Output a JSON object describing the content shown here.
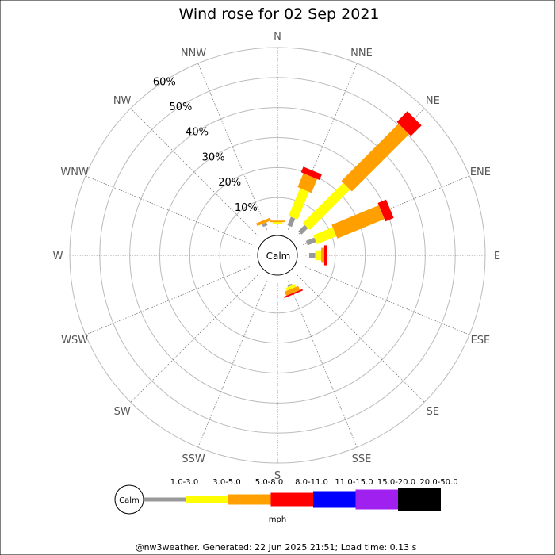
{
  "chart_data": {
    "type": "wind-rose",
    "title": "Wind rose for 02 Sep 2021",
    "calm_label": "Calm",
    "directions": [
      "N",
      "NNE",
      "NE",
      "ENE",
      "E",
      "ESE",
      "SE",
      "SSE",
      "S",
      "SSW",
      "SW",
      "WSW",
      "W",
      "WNW",
      "NW",
      "NNW"
    ],
    "radial_ticks": [
      "10%",
      "20%",
      "30%",
      "40%",
      "50%",
      "60%"
    ],
    "radial_values": [
      10,
      20,
      30,
      40,
      50,
      60
    ],
    "speed_bins": [
      {
        "label": "1.0-3.0",
        "color": "#999999"
      },
      {
        "label": "3.0-5.0",
        "color": "#ffff00"
      },
      {
        "label": "5.0-8.0",
        "color": "#ffa000"
      },
      {
        "label": "8.0-11.0",
        "color": "#ff0000"
      },
      {
        "label": "11.0-15.0",
        "color": "#0000ff"
      },
      {
        "label": "15.0-20.0",
        "color": "#a020f0"
      },
      {
        "label": "20.0-50.0",
        "color": "#000000"
      }
    ],
    "units": "mph",
    "series": [
      {
        "direction": "N",
        "values": [
          0,
          0.5,
          0.5,
          0,
          0,
          0,
          0
        ]
      },
      {
        "direction": "NNE",
        "values": [
          3,
          10,
          5,
          2,
          0,
          0,
          0
        ]
      },
      {
        "direction": "NE",
        "values": [
          3,
          19,
          27,
          5,
          0,
          0,
          0
        ]
      },
      {
        "direction": "ENE",
        "values": [
          3,
          7,
          17,
          3,
          0,
          0,
          0
        ]
      },
      {
        "direction": "E",
        "values": [
          2,
          2,
          1,
          1,
          0,
          0,
          0
        ]
      },
      {
        "direction": "ESE",
        "values": [
          0,
          0,
          0,
          0,
          0,
          0,
          0
        ]
      },
      {
        "direction": "SE",
        "values": [
          0,
          0,
          0,
          0,
          0,
          0,
          0
        ]
      },
      {
        "direction": "SSE",
        "values": [
          0.5,
          1,
          1.5,
          0.5,
          0,
          0,
          0
        ]
      },
      {
        "direction": "S",
        "values": [
          0,
          0,
          0,
          0,
          0,
          0,
          0
        ]
      },
      {
        "direction": "SSW",
        "values": [
          0,
          0,
          0,
          0,
          0,
          0,
          0
        ]
      },
      {
        "direction": "SW",
        "values": [
          0,
          0,
          0,
          0,
          0,
          0,
          0
        ]
      },
      {
        "direction": "WSW",
        "values": [
          0,
          0,
          0,
          0,
          0,
          0,
          0
        ]
      },
      {
        "direction": "W",
        "values": [
          0,
          0,
          0,
          0,
          0,
          0,
          0
        ]
      },
      {
        "direction": "WNW",
        "values": [
          0,
          0,
          0,
          0,
          0,
          0,
          0
        ]
      },
      {
        "direction": "NW",
        "values": [
          0,
          0,
          0,
          0,
          0,
          0,
          0
        ]
      },
      {
        "direction": "NNW",
        "values": [
          1,
          0,
          1,
          0,
          0,
          0,
          0
        ]
      }
    ],
    "rmax": 60
  },
  "footer": "@nw3weather. Generated: 22 Jun 2025 21:51; Load time: 0.13 s"
}
